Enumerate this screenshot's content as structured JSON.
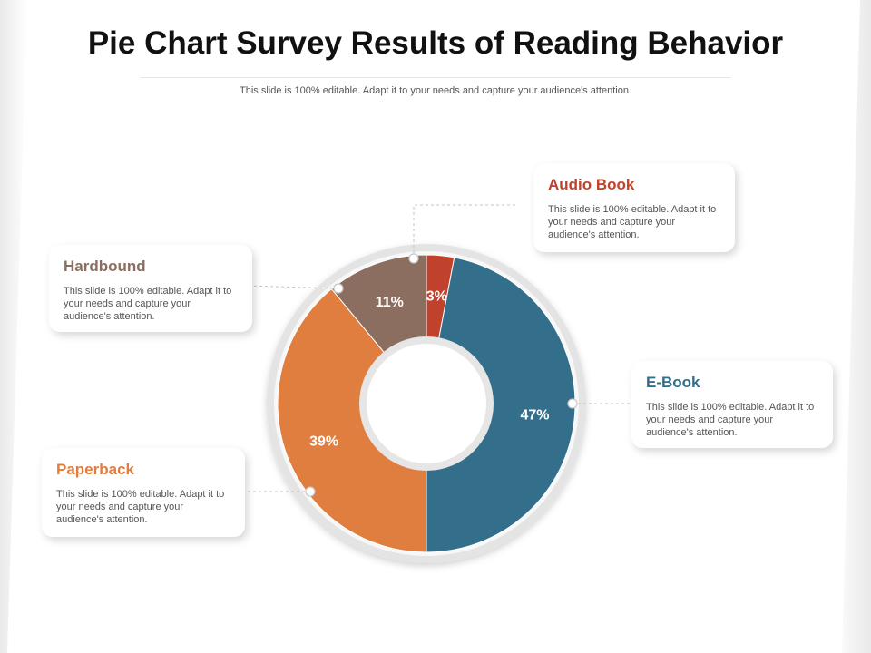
{
  "title": "Pie Chart Survey Results of Reading Behavior",
  "subtitle": "This slide is 100% editable. Adapt it to your needs and capture your audience's attention.",
  "chart_data": {
    "type": "pie",
    "title": "Pie Chart Survey Results of Reading Behavior",
    "categories": [
      "Audio Book",
      "E-Book",
      "Paperback",
      "Hardbound"
    ],
    "values": [
      3,
      47,
      39,
      11
    ],
    "labels": [
      "3%",
      "47%",
      "39%",
      "11%"
    ],
    "colors": [
      "#c0412c",
      "#336e8b",
      "#df7e3e",
      "#8c6e60"
    ],
    "donut": true
  },
  "cards": {
    "audio": {
      "title": "Audio Book",
      "color": "#c0412c",
      "text": "This slide is 100% editable. Adapt it to your needs and capture your audience's attention."
    },
    "hardbound": {
      "title": "Hardbound",
      "color": "#8c6e60",
      "text": "This slide is 100% editable. Adapt it to your needs and capture your audience's attention."
    },
    "ebook": {
      "title": "E-Book",
      "color": "#336e8b",
      "text": "This slide is 100% editable. Adapt it to your needs and capture your audience's attention."
    },
    "paperback": {
      "title": "Paperback",
      "color": "#df7e3e",
      "text": "This slide is 100% editable. Adapt it to your needs and capture your audience's attention."
    }
  }
}
